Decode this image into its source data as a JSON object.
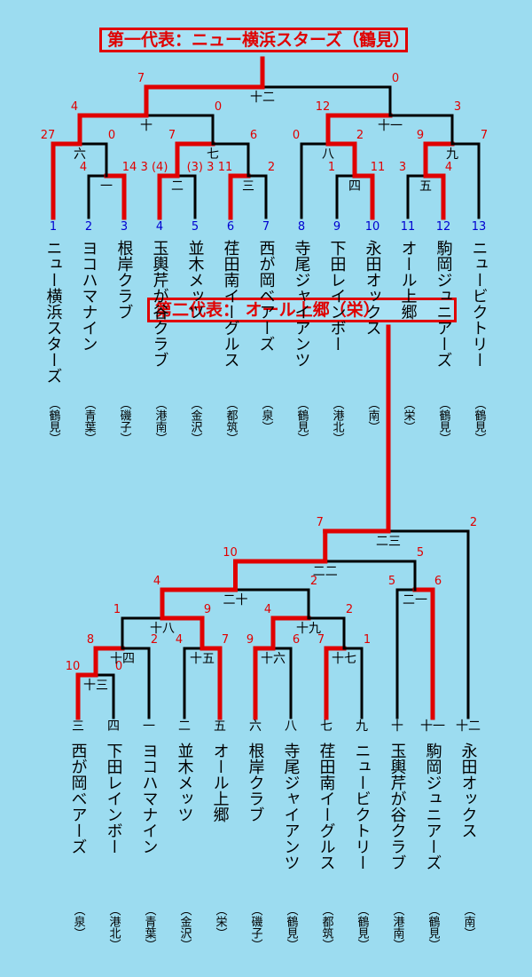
{
  "colors": {
    "background": "#9cdcf0",
    "winner_line": "#e00000",
    "line": "#000000",
    "seed_number": "#0000d0"
  },
  "bracket1": {
    "title": "第一代表：ニュー横浜スターズ（鶴見）",
    "teams": [
      {
        "seed": "1",
        "name": "ニュー横浜スターズ",
        "area": "（鶴見）"
      },
      {
        "seed": "2",
        "name": "ヨコハマナイン",
        "area": "（青葉）"
      },
      {
        "seed": "3",
        "name": "根岸クラブ",
        "area": "（磯子）"
      },
      {
        "seed": "4",
        "name": "玉輿芹が谷クラブ",
        "area": "（港南）"
      },
      {
        "seed": "5",
        "name": "並木メッツ",
        "area": "（金沢）"
      },
      {
        "seed": "6",
        "name": "荏田南イーグルス",
        "area": "（都筑）"
      },
      {
        "seed": "7",
        "name": "西が岡ベアーズ",
        "area": "（泉）"
      },
      {
        "seed": "8",
        "name": "寺尾ジャイアンツ",
        "area": "（鶴見）"
      },
      {
        "seed": "9",
        "name": "下田レインボー",
        "area": "（港北）"
      },
      {
        "seed": "10",
        "name": "永田オックス",
        "area": "（南）"
      },
      {
        "seed": "11",
        "name": "オール上郷",
        "area": "（栄）"
      },
      {
        "seed": "12",
        "name": "駒岡ジュニアーズ",
        "area": "（鶴見）"
      },
      {
        "seed": "13",
        "name": "ニュービクトリー",
        "area": "（鶴見）"
      }
    ],
    "matches": [
      {
        "no": "一",
        "left_score": "4",
        "right_score": "14"
      },
      {
        "no": "二",
        "left_score": "3 (4)",
        "right_score": "(3) 3"
      },
      {
        "no": "三",
        "left_score": "11",
        "right_score": "2"
      },
      {
        "no": "四",
        "left_score": "1",
        "right_score": "11"
      },
      {
        "no": "五",
        "left_score": "3",
        "right_score": "4"
      },
      {
        "no": "六",
        "left_score": "27",
        "right_score": "0"
      },
      {
        "no": "七",
        "left_score": "7",
        "right_score": "6"
      },
      {
        "no": "八",
        "left_score": "0",
        "right_score": "2"
      },
      {
        "no": "九",
        "left_score": "9",
        "right_score": "7"
      },
      {
        "no": "十",
        "left_score": "4",
        "right_score": "0"
      },
      {
        "no": "十一",
        "left_score": "12",
        "right_score": "3"
      },
      {
        "no": "十二",
        "left_score": "7",
        "right_score": "0"
      }
    ]
  },
  "bracket2": {
    "title": "第二代表：  オール上郷（栄）",
    "teams": [
      {
        "seed": "三",
        "name": "西が岡ベアーズ",
        "area": "（泉）"
      },
      {
        "seed": "四",
        "name": "下田レインボー",
        "area": "（港北）"
      },
      {
        "seed": "一",
        "name": "ヨコハマナイン",
        "area": "（青葉）"
      },
      {
        "seed": "二",
        "name": "並木メッツ",
        "area": "（金沢）"
      },
      {
        "seed": "五",
        "name": "オール上郷",
        "area": "（栄）"
      },
      {
        "seed": "六",
        "name": "根岸クラブ",
        "area": "（磯子）"
      },
      {
        "seed": "八",
        "name": "寺尾ジャイアンツ",
        "area": "（鶴見）"
      },
      {
        "seed": "七",
        "name": "荏田南イーグルス",
        "area": "（都筑）"
      },
      {
        "seed": "九",
        "name": "ニュービクトリー",
        "area": "（鶴見）"
      },
      {
        "seed": "十",
        "name": "玉輿芹が谷クラブ",
        "area": "（港南）"
      },
      {
        "seed": "十一",
        "name": "駒岡ジュニアーズ",
        "area": "（鶴見）"
      },
      {
        "seed": "十二",
        "name": "永田オックス",
        "area": "（南）"
      }
    ],
    "matches": [
      {
        "no": "十三",
        "left_score": "10",
        "right_score": "0"
      },
      {
        "no": "十四",
        "left_score": "8",
        "right_score": "2"
      },
      {
        "no": "十五",
        "left_score": "4",
        "right_score": "7"
      },
      {
        "no": "十六",
        "left_score": "9",
        "right_score": "6"
      },
      {
        "no": "十七",
        "left_score": "7",
        "right_score": "1"
      },
      {
        "no": "十八",
        "left_score": "1",
        "right_score": "9"
      },
      {
        "no": "十九",
        "left_score": "4",
        "right_score": "2"
      },
      {
        "no": "二十",
        "left_score": "4",
        "right_score": "2"
      },
      {
        "no": "二一",
        "left_score": "5",
        "right_score": "6"
      },
      {
        "no": "二二",
        "left_score": "10",
        "right_score": "5"
      },
      {
        "no": "二三",
        "left_score": "7",
        "right_score": "2"
      }
    ]
  }
}
